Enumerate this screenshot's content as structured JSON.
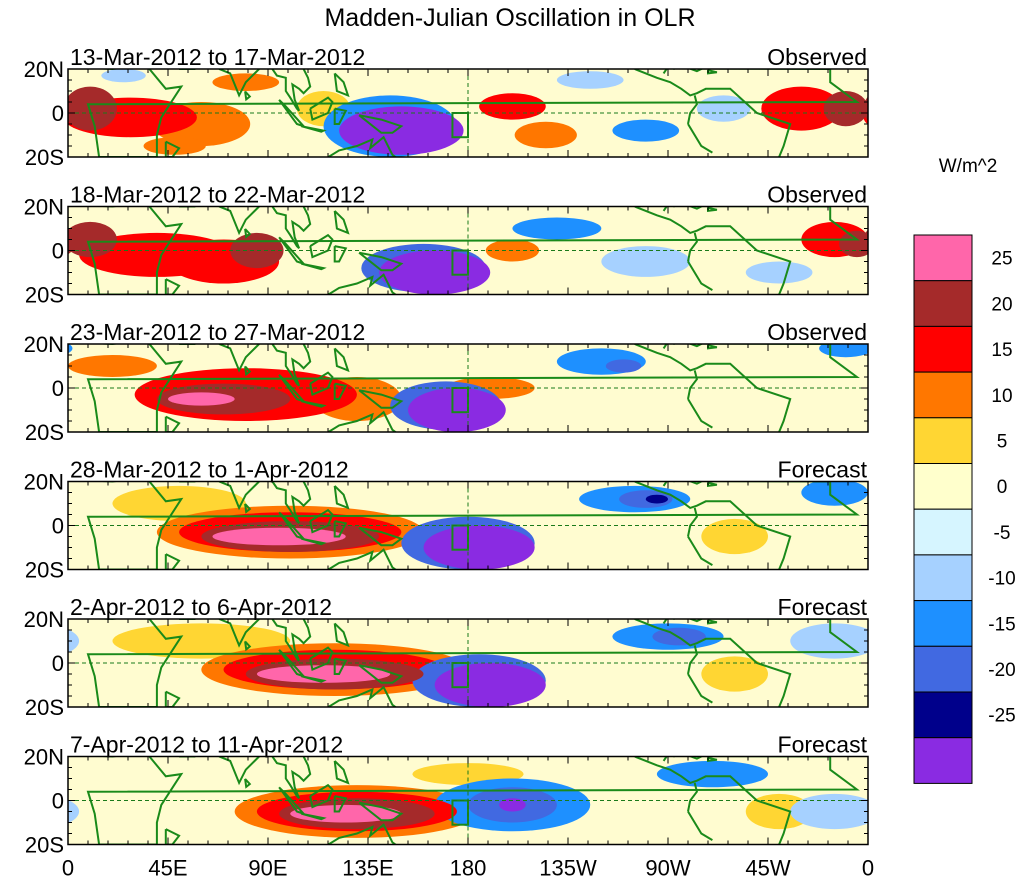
{
  "chart_data": {
    "type": "heatmap",
    "title": "Madden-Julian Oscillation in OLR",
    "units": "W/m^2",
    "x_tick_labels": [
      "0",
      "45E",
      "90E",
      "135E",
      "180",
      "135W",
      "90W",
      "45W",
      "0"
    ],
    "y_tick_labels": [
      "20N",
      "0",
      "20S"
    ],
    "colorbar": {
      "levels": [
        "25",
        "20",
        "15",
        "10",
        "5",
        "0",
        "-5",
        "-10",
        "-15",
        "-20",
        "-25"
      ],
      "colors": [
        "#ff66aa",
        "#a52a2a",
        "#ff0000",
        "#ff7700",
        "#ffd633",
        "#ffffcc",
        "#d6f5ff",
        "#a6d1ff",
        "#1e90ff",
        "#4169e1",
        "#00008b",
        "#8a2be2"
      ]
    },
    "panels": [
      {
        "period": "13-Mar-2012 to 17-Mar-2012",
        "status": "Observed",
        "anomalies": [
          {
            "lon": 10,
            "lat": 2,
            "rx": 12,
            "ry": 10,
            "level": 20
          },
          {
            "lon": 28,
            "lat": -2,
            "rx": 30,
            "ry": 9,
            "level": 15
          },
          {
            "lon": 60,
            "lat": -5,
            "rx": 22,
            "ry": 10,
            "level": 10
          },
          {
            "lon": 48,
            "lat": -15,
            "rx": 14,
            "ry": 4,
            "level": 10
          },
          {
            "lon": 80,
            "lat": 14,
            "rx": 15,
            "ry": 4,
            "level": 10
          },
          {
            "lon": 115,
            "lat": 2,
            "rx": 12,
            "ry": 8,
            "level": 5
          },
          {
            "lon": 200,
            "lat": 3,
            "rx": 15,
            "ry": 6,
            "level": 15
          },
          {
            "lon": 215,
            "lat": -10,
            "rx": 14,
            "ry": 6,
            "level": 10
          },
          {
            "lon": 330,
            "lat": 2,
            "rx": 18,
            "ry": 10,
            "level": 15
          },
          {
            "lon": 350,
            "lat": 2,
            "rx": 10,
            "ry": 8,
            "level": 20
          },
          {
            "lon": 145,
            "lat": -6,
            "rx": 30,
            "ry": 14,
            "level": -10
          },
          {
            "lon": 150,
            "lat": -8,
            "rx": 28,
            "ry": 11,
            "level": -25
          },
          {
            "lon": 260,
            "lat": -8,
            "rx": 15,
            "ry": 5,
            "level": -10
          },
          {
            "lon": 295,
            "lat": 2,
            "rx": 12,
            "ry": 6,
            "level": -5
          },
          {
            "lon": 235,
            "lat": 15,
            "rx": 15,
            "ry": 4,
            "level": -5
          },
          {
            "lon": 25,
            "lat": 17,
            "rx": 10,
            "ry": 3,
            "level": -5
          }
        ]
      },
      {
        "period": "18-Mar-2012 to 22-Mar-2012",
        "status": "Observed",
        "anomalies": [
          {
            "lon": 10,
            "lat": 5,
            "rx": 12,
            "ry": 8,
            "level": 20
          },
          {
            "lon": 40,
            "lat": -2,
            "rx": 35,
            "ry": 10,
            "level": 15
          },
          {
            "lon": 70,
            "lat": -5,
            "rx": 25,
            "ry": 10,
            "level": 15
          },
          {
            "lon": 85,
            "lat": 0,
            "rx": 12,
            "ry": 8,
            "level": 20
          },
          {
            "lon": 200,
            "lat": 0,
            "rx": 12,
            "ry": 5,
            "level": 10
          },
          {
            "lon": 345,
            "lat": 5,
            "rx": 15,
            "ry": 8,
            "level": 15
          },
          {
            "lon": 355,
            "lat": 3,
            "rx": 8,
            "ry": 6,
            "level": 20
          },
          {
            "lon": 160,
            "lat": -8,
            "rx": 28,
            "ry": 11,
            "level": -15
          },
          {
            "lon": 165,
            "lat": -10,
            "rx": 25,
            "ry": 10,
            "level": -25
          },
          {
            "lon": 220,
            "lat": 10,
            "rx": 20,
            "ry": 5,
            "level": -10
          },
          {
            "lon": 260,
            "lat": -5,
            "rx": 20,
            "ry": 7,
            "level": -5
          },
          {
            "lon": 320,
            "lat": -10,
            "rx": 15,
            "ry": 5,
            "level": -5
          }
        ]
      },
      {
        "period": "23-Mar-2012 to 27-Mar-2012",
        "status": "Observed",
        "anomalies": [
          {
            "lon": 80,
            "lat": -3,
            "rx": 50,
            "ry": 12,
            "level": 15
          },
          {
            "lon": 70,
            "lat": -5,
            "rx": 30,
            "ry": 7,
            "level": 20
          },
          {
            "lon": 60,
            "lat": -5,
            "rx": 15,
            "ry": 3,
            "level": 25
          },
          {
            "lon": 20,
            "lat": 10,
            "rx": 20,
            "ry": 5,
            "level": 10
          },
          {
            "lon": 130,
            "lat": -5,
            "rx": 20,
            "ry": 10,
            "level": 10
          },
          {
            "lon": 190,
            "lat": 0,
            "rx": 20,
            "ry": 5,
            "level": 10
          },
          {
            "lon": 170,
            "lat": -8,
            "rx": 25,
            "ry": 11,
            "level": -15
          },
          {
            "lon": 175,
            "lat": -10,
            "rx": 22,
            "ry": 10,
            "level": -25
          },
          {
            "lon": 240,
            "lat": 12,
            "rx": 20,
            "ry": 6,
            "level": -10
          },
          {
            "lon": 250,
            "lat": 10,
            "rx": 8,
            "ry": 3,
            "level": -15
          },
          {
            "lon": 350,
            "lat": 18,
            "rx": 12,
            "ry": 4,
            "level": -10
          }
        ]
      },
      {
        "period": "28-Mar-2012 to 1-Apr-2012",
        "status": "Forecast",
        "anomalies": [
          {
            "lon": 100,
            "lat": -3,
            "rx": 60,
            "ry": 12,
            "level": 10
          },
          {
            "lon": 100,
            "lat": -3,
            "rx": 50,
            "ry": 9,
            "level": 15
          },
          {
            "lon": 100,
            "lat": -5,
            "rx": 40,
            "ry": 7,
            "level": 20
          },
          {
            "lon": 95,
            "lat": -5,
            "rx": 30,
            "ry": 4,
            "level": 25
          },
          {
            "lon": 50,
            "lat": 10,
            "rx": 30,
            "ry": 8,
            "level": 5
          },
          {
            "lon": 180,
            "lat": -8,
            "rx": 30,
            "ry": 12,
            "level": -15
          },
          {
            "lon": 185,
            "lat": -10,
            "rx": 25,
            "ry": 10,
            "level": -25
          },
          {
            "lon": 255,
            "lat": 12,
            "rx": 25,
            "ry": 6,
            "level": -10
          },
          {
            "lon": 260,
            "lat": 12,
            "rx": 12,
            "ry": 4,
            "level": -15
          },
          {
            "lon": 265,
            "lat": 12,
            "rx": 5,
            "ry": 2,
            "level": -20
          },
          {
            "lon": 300,
            "lat": -5,
            "rx": 15,
            "ry": 8,
            "level": 5
          },
          {
            "lon": 345,
            "lat": 15,
            "rx": 15,
            "ry": 6,
            "level": -10
          }
        ]
      },
      {
        "period": "2-Apr-2012 to 6-Apr-2012",
        "status": "Forecast",
        "anomalies": [
          {
            "lon": 120,
            "lat": -3,
            "rx": 60,
            "ry": 12,
            "level": 10
          },
          {
            "lon": 120,
            "lat": -3,
            "rx": 50,
            "ry": 9,
            "level": 15
          },
          {
            "lon": 120,
            "lat": -5,
            "rx": 40,
            "ry": 7,
            "level": 20
          },
          {
            "lon": 115,
            "lat": -5,
            "rx": 30,
            "ry": 4,
            "level": 25
          },
          {
            "lon": 60,
            "lat": 10,
            "rx": 40,
            "ry": 8,
            "level": 5
          },
          {
            "lon": 185,
            "lat": -8,
            "rx": 30,
            "ry": 12,
            "level": -15
          },
          {
            "lon": 190,
            "lat": -10,
            "rx": 25,
            "ry": 10,
            "level": -25
          },
          {
            "lon": 270,
            "lat": 12,
            "rx": 25,
            "ry": 6,
            "level": -10
          },
          {
            "lon": 275,
            "lat": 12,
            "rx": 12,
            "ry": 4,
            "level": -15
          },
          {
            "lon": 300,
            "lat": -5,
            "rx": 15,
            "ry": 8,
            "level": 5
          },
          {
            "lon": 345,
            "lat": 10,
            "rx": 20,
            "ry": 8,
            "level": -5
          }
        ]
      },
      {
        "period": "7-Apr-2012 to 11-Apr-2012",
        "status": "Forecast",
        "anomalies": [
          {
            "lon": 130,
            "lat": -5,
            "rx": 55,
            "ry": 12,
            "level": 10
          },
          {
            "lon": 130,
            "lat": -5,
            "rx": 45,
            "ry": 9,
            "level": 15
          },
          {
            "lon": 130,
            "lat": -6,
            "rx": 35,
            "ry": 7,
            "level": 20
          },
          {
            "lon": 125,
            "lat": -6,
            "rx": 25,
            "ry": 4,
            "level": 25
          },
          {
            "lon": 180,
            "lat": 12,
            "rx": 25,
            "ry": 5,
            "level": 5
          },
          {
            "lon": 200,
            "lat": -2,
            "rx": 35,
            "ry": 12,
            "level": -10
          },
          {
            "lon": 200,
            "lat": -2,
            "rx": 20,
            "ry": 8,
            "level": -15
          },
          {
            "lon": 200,
            "lat": -2,
            "rx": 6,
            "ry": 3,
            "level": -25
          },
          {
            "lon": 290,
            "lat": 12,
            "rx": 25,
            "ry": 6,
            "level": -10
          },
          {
            "lon": 320,
            "lat": -5,
            "rx": 15,
            "ry": 8,
            "level": 5
          },
          {
            "lon": 345,
            "lat": -5,
            "rx": 20,
            "ry": 8,
            "level": -5
          }
        ]
      }
    ]
  }
}
